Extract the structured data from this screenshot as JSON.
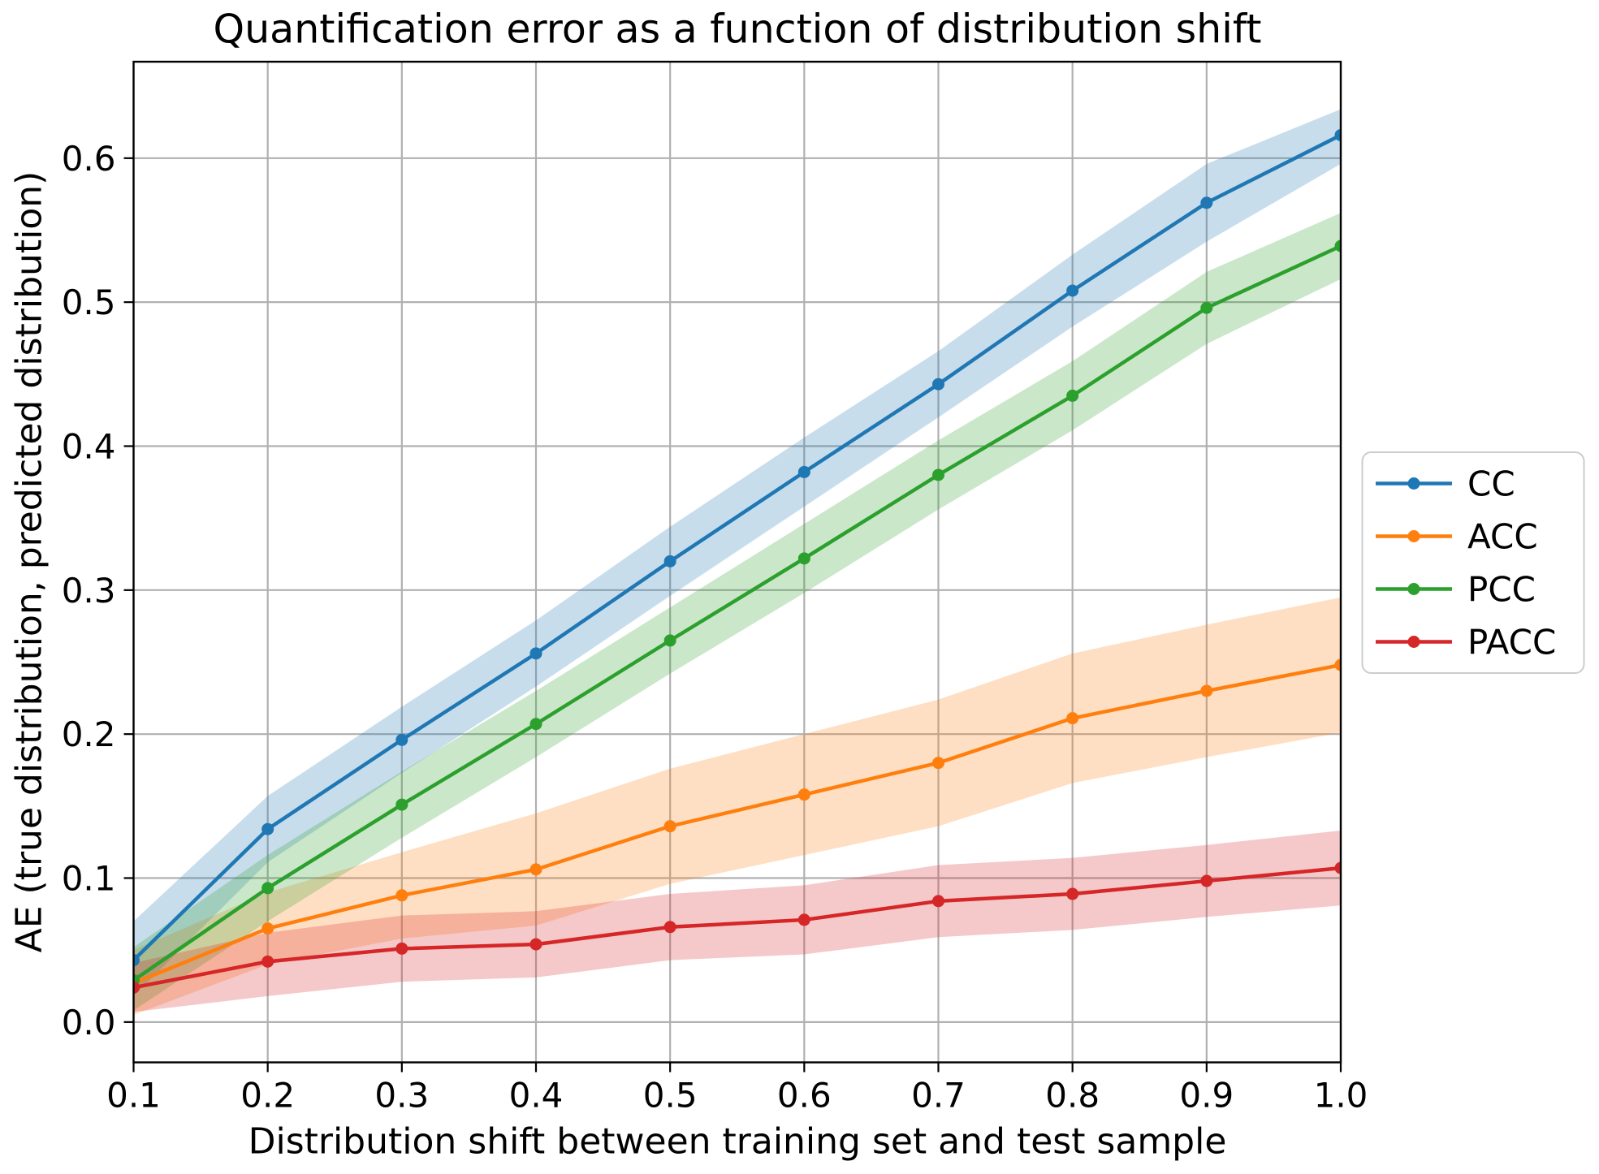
{
  "chart_data": {
    "type": "line",
    "title": "Quantification error as a function of distribution shift",
    "xlabel": "Distribution shift between training set and test sample",
    "ylabel": "AE (true distribution, predicted distribution)",
    "x": [
      0.1,
      0.2,
      0.3,
      0.4,
      0.5,
      0.6,
      0.7,
      0.8,
      0.9,
      1.0
    ],
    "x_tick_labels": [
      "0.1",
      "0.2",
      "0.3",
      "0.4",
      "0.5",
      "0.6",
      "0.7",
      "0.8",
      "0.9",
      "1.0"
    ],
    "y_ticks": [
      0.0,
      0.1,
      0.2,
      0.3,
      0.4,
      0.5,
      0.6
    ],
    "y_tick_labels": [
      "0.0",
      "0.1",
      "0.2",
      "0.3",
      "0.4",
      "0.5",
      "0.6"
    ],
    "xlim": [
      0.1,
      1.0
    ],
    "ylim": [
      -0.028,
      0.667
    ],
    "grid": true,
    "grid_color": "#b0b0b0",
    "spine_color": "#000000",
    "band_opacity": 0.25,
    "legend_position": "center-right-outside",
    "series": [
      {
        "name": "CC",
        "color": "#1f77b4",
        "values": [
          0.043,
          0.134,
          0.196,
          0.256,
          0.32,
          0.382,
          0.443,
          0.508,
          0.569,
          0.616
        ],
        "band_lower": [
          0.018,
          0.111,
          0.173,
          0.233,
          0.296,
          0.358,
          0.42,
          0.483,
          0.542,
          0.596
        ],
        "band_upper": [
          0.07,
          0.157,
          0.219,
          0.279,
          0.344,
          0.406,
          0.466,
          0.533,
          0.596,
          0.634
        ]
      },
      {
        "name": "ACC",
        "color": "#ff7f0e",
        "values": [
          0.027,
          0.065,
          0.088,
          0.106,
          0.136,
          0.158,
          0.18,
          0.211,
          0.23,
          0.248
        ],
        "band_lower": [
          0.005,
          0.04,
          0.058,
          0.067,
          0.096,
          0.116,
          0.136,
          0.166,
          0.184,
          0.201
        ],
        "band_upper": [
          0.05,
          0.09,
          0.118,
          0.145,
          0.176,
          0.2,
          0.224,
          0.256,
          0.276,
          0.295
        ]
      },
      {
        "name": "PCC",
        "color": "#2ca02c",
        "values": [
          0.029,
          0.093,
          0.151,
          0.207,
          0.265,
          0.322,
          0.38,
          0.435,
          0.496,
          0.539
        ],
        "band_lower": [
          0.008,
          0.07,
          0.128,
          0.184,
          0.242,
          0.298,
          0.356,
          0.411,
          0.471,
          0.516
        ],
        "band_upper": [
          0.052,
          0.116,
          0.174,
          0.23,
          0.288,
          0.346,
          0.404,
          0.459,
          0.521,
          0.562
        ]
      },
      {
        "name": "PACC",
        "color": "#d62728",
        "values": [
          0.024,
          0.042,
          0.051,
          0.054,
          0.066,
          0.071,
          0.084,
          0.089,
          0.098,
          0.107
        ],
        "band_lower": [
          0.007,
          0.018,
          0.028,
          0.031,
          0.043,
          0.047,
          0.059,
          0.064,
          0.073,
          0.081
        ],
        "band_upper": [
          0.041,
          0.062,
          0.074,
          0.077,
          0.089,
          0.095,
          0.109,
          0.114,
          0.123,
          0.133
        ]
      }
    ]
  }
}
